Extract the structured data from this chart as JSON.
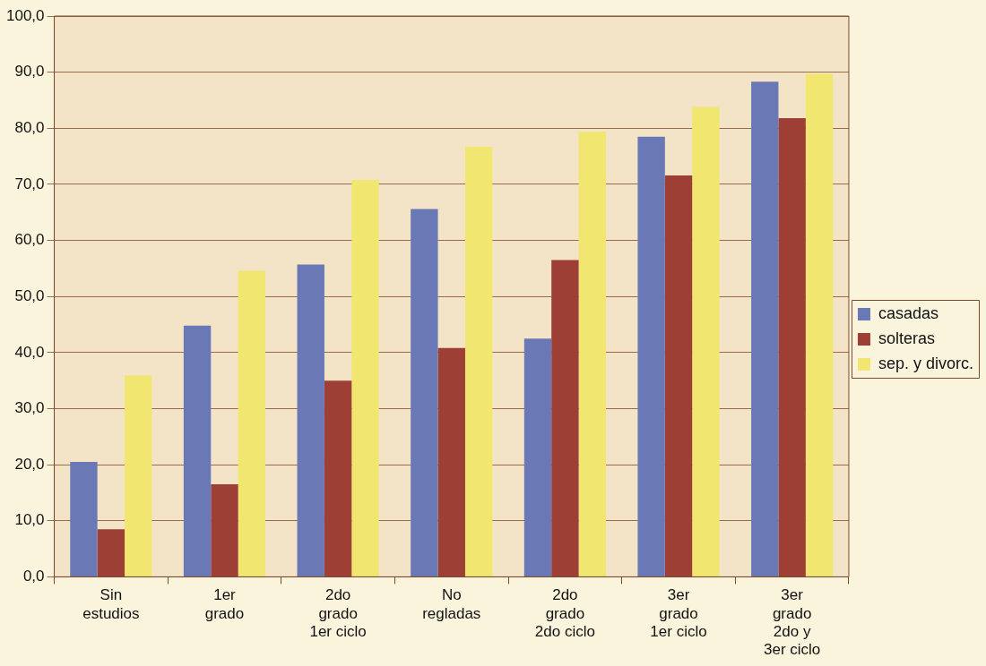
{
  "chart_data": {
    "type": "bar",
    "categories": [
      "Sin\nestudios",
      "1er\ngrado",
      "2do\ngrado\n1er ciclo",
      "No\nregladas",
      "2do\ngrado\n2do ciclo",
      "3er\ngrado\n1er ciclo",
      "3er\ngrado\n2do y\n3er ciclo"
    ],
    "series": [
      {
        "name": "casadas",
        "color": "#6b78b6",
        "values": [
          20.5,
          44.8,
          55.7,
          65.6,
          42.5,
          78.5,
          88.3
        ]
      },
      {
        "name": "solteras",
        "color": "#9e3f36",
        "values": [
          8.5,
          16.5,
          35.0,
          40.8,
          56.5,
          71.6,
          81.8
        ]
      },
      {
        "name": "sep. y divorc.",
        "color": "#f0e670",
        "values": [
          35.9,
          54.6,
          70.8,
          76.7,
          79.4,
          83.8,
          89.7
        ]
      }
    ],
    "ylim": [
      0,
      100
    ],
    "yticks": [
      {
        "value": 0,
        "label": "0,0"
      },
      {
        "value": 10,
        "label": "10,0"
      },
      {
        "value": 20,
        "label": "20,0"
      },
      {
        "value": 30,
        "label": "30,0"
      },
      {
        "value": 40,
        "label": "40,0"
      },
      {
        "value": 50,
        "label": "50,0"
      },
      {
        "value": 60,
        "label": "60,0"
      },
      {
        "value": 70,
        "label": "70,0"
      },
      {
        "value": 80,
        "label": "80,0"
      },
      {
        "value": 90,
        "label": "90,0"
      },
      {
        "value": 100,
        "label": "100,0"
      }
    ],
    "grid": "y",
    "legend": "right"
  }
}
